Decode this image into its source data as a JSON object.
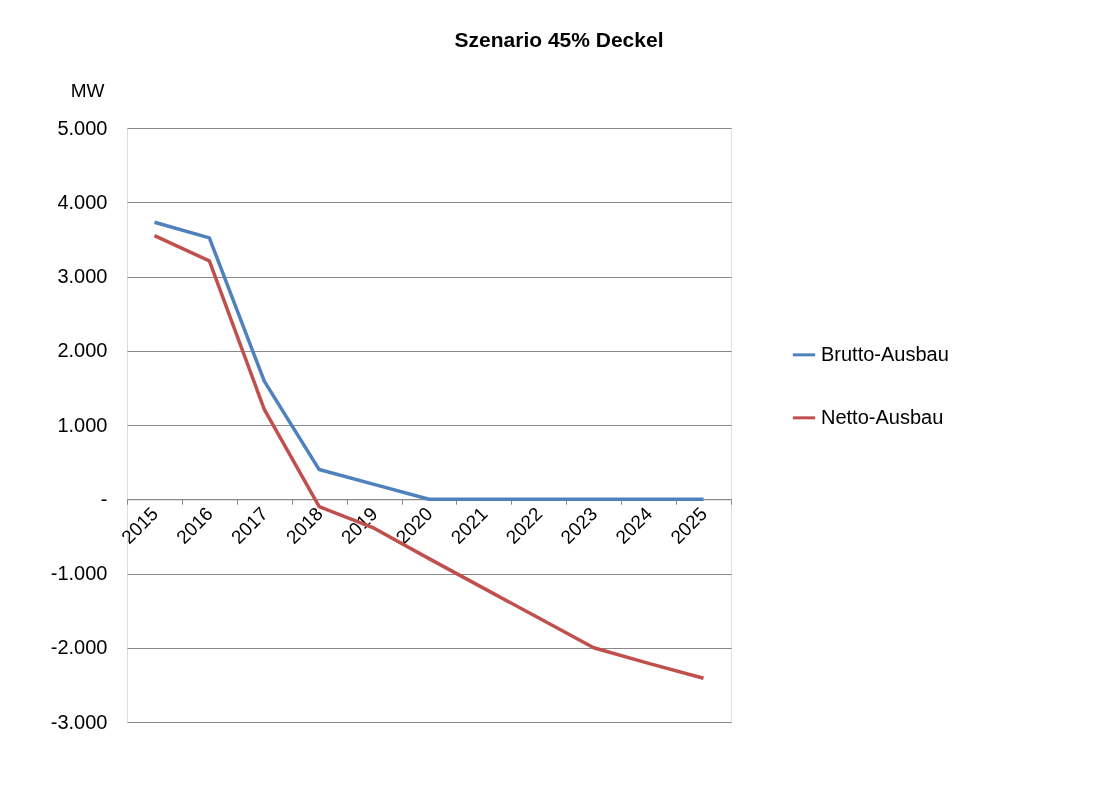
{
  "chart_data": {
    "type": "line",
    "title": "Szenario  45% Deckel",
    "ylabel": "MW",
    "categories": [
      "2015",
      "2016",
      "2017",
      "2018",
      "2019",
      "2020",
      "2021",
      "2022",
      "2023",
      "2024",
      "2025"
    ],
    "series": [
      {
        "name": "Brutto-Ausbau",
        "color": "#4f81bd",
        "values": [
          3730,
          3520,
          1590,
          400,
          200,
          0,
          0,
          0,
          0,
          0,
          0
        ]
      },
      {
        "name": "Netto-Ausbau",
        "color": "#c0504d",
        "values": [
          3550,
          3210,
          1210,
          -100,
          -390,
          -800,
          -1200,
          -1600,
          -2000,
          -2210,
          -2410
        ]
      }
    ],
    "ylim": [
      -3000,
      5000
    ],
    "yticks": [
      {
        "value": -3000,
        "label": "-3.000"
      },
      {
        "value": -2000,
        "label": "-2.000"
      },
      {
        "value": -1000,
        "label": "-1.000"
      },
      {
        "value": 0,
        "label": "-"
      },
      {
        "value": 1000,
        "label": "1.000"
      },
      {
        "value": 2000,
        "label": "2.000"
      },
      {
        "value": 3000,
        "label": "3.000"
      },
      {
        "value": 4000,
        "label": "4.000"
      },
      {
        "value": 5000,
        "label": "5.000"
      }
    ],
    "grid": "y",
    "legend": "right",
    "marker": "none",
    "line_style": "solid"
  }
}
